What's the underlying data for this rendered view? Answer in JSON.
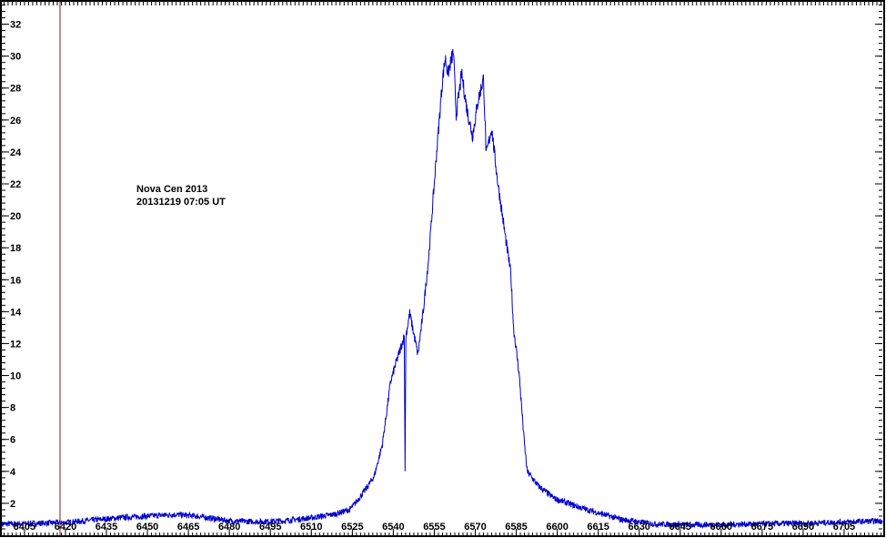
{
  "chart_data": {
    "type": "line",
    "title": "",
    "annotations": [
      "Nova Cen 2013",
      "20131219  07:05 UT"
    ],
    "xlabel": "",
    "ylabel": "",
    "xlim": [
      6396.7,
      6719
    ],
    "ylim": [
      0,
      33.4
    ],
    "x_ticks": [
      6405,
      6420,
      6435,
      6450,
      6465,
      6480,
      6495,
      6510,
      6525,
      6540,
      6555,
      6570,
      6585,
      6600,
      6615,
      6630,
      6645,
      6660,
      6675,
      6690,
      6705
    ],
    "y_ticks": [
      2,
      4,
      6,
      8,
      10,
      12,
      14,
      16,
      18,
      20,
      22,
      24,
      26,
      28,
      30,
      32
    ],
    "grid": false,
    "marker_line_x": 6418,
    "colors": {
      "series": "#0000c8",
      "marker_line": "#8b1a1a",
      "axis": "#000000"
    },
    "series": [
      {
        "name": "spectrum",
        "x": [
          6396.7,
          6410,
          6420,
          6430,
          6440,
          6450,
          6460,
          6468,
          6480,
          6490,
          6500,
          6510,
          6518,
          6524,
          6526,
          6530,
          6533,
          6536,
          6539,
          6541,
          6543,
          6544.0,
          6544.3,
          6544.6,
          6546,
          6549,
          6551,
          6553,
          6556,
          6558,
          6559,
          6560,
          6562,
          6563,
          6565,
          6567,
          6569,
          6571,
          6573,
          6574,
          6576,
          6578,
          6581,
          6583,
          6584,
          6586,
          6588,
          6589,
          6593,
          6599,
          6609,
          6623,
          6636,
          6650,
          6670,
          6690,
          6719
        ],
        "y": [
          0.7,
          0.75,
          0.8,
          0.95,
          1.1,
          1.2,
          1.3,
          1.2,
          0.9,
          0.85,
          0.9,
          1.1,
          1.3,
          1.6,
          2.0,
          2.9,
          3.7,
          5.7,
          9.6,
          10.8,
          11.9,
          12.5,
          4.0,
          12.5,
          13.9,
          11.3,
          14.1,
          17.5,
          24.3,
          28.5,
          29.9,
          28.9,
          30.3,
          26.3,
          28.9,
          26.6,
          25.0,
          27.2,
          28.6,
          23.8,
          25.5,
          22.4,
          18.7,
          16.4,
          13.0,
          10.2,
          5.7,
          4.0,
          3.1,
          2.3,
          1.7,
          1.0,
          0.7,
          0.65,
          0.7,
          0.75,
          0.9
        ]
      }
    ]
  }
}
